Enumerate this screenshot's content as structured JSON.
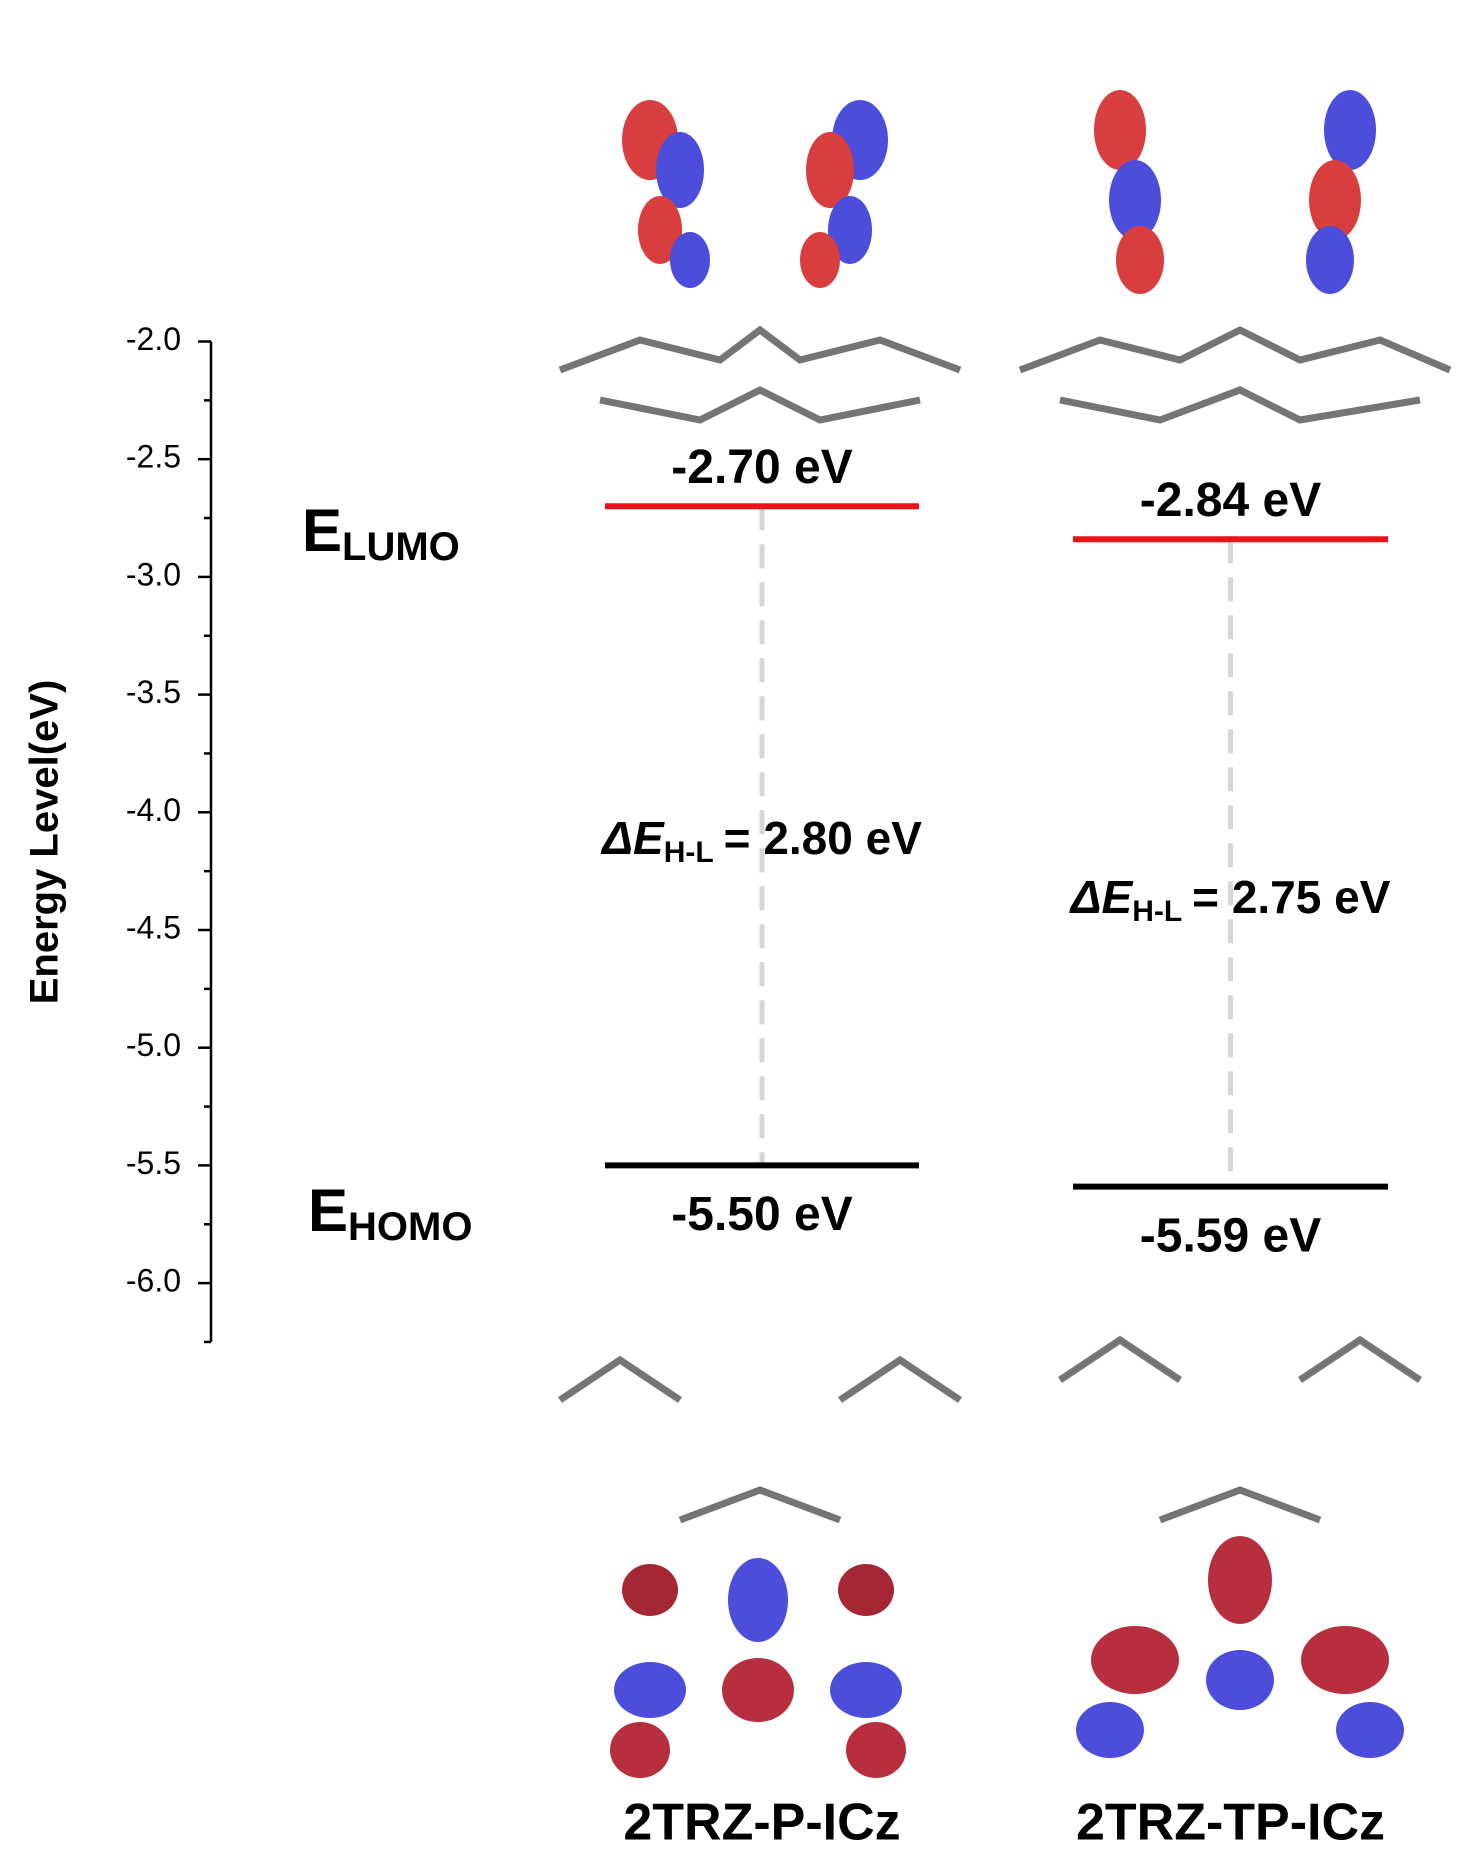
{
  "chart_data": {
    "type": "energy-level",
    "y_label": "Energy Level(eV)",
    "ylim": [
      -6.25,
      -2.0
    ],
    "yticks": [
      {
        "value": -2.0,
        "label": "-2.0"
      },
      {
        "value": -2.5,
        "label": "-2.5"
      },
      {
        "value": -3.0,
        "label": "-3.0"
      },
      {
        "value": -3.5,
        "label": "-3.5"
      },
      {
        "value": -4.0,
        "label": "-4.0"
      },
      {
        "value": -4.5,
        "label": "-4.5"
      },
      {
        "value": -5.0,
        "label": "-5.0"
      },
      {
        "value": -5.5,
        "label": "-5.5"
      },
      {
        "value": -6.0,
        "label": "-6.0"
      }
    ],
    "yminor_ticks": [
      -2.25,
      -2.75,
      -3.25,
      -3.75,
      -4.25,
      -4.75,
      -5.25,
      -5.75,
      -6.25
    ],
    "lumo_symbol": "E",
    "lumo_subscript": "LUMO",
    "homo_symbol": "E",
    "homo_subscript": "HOMO",
    "gap_symbol": "ΔE",
    "gap_subscript": "H-L",
    "lumo_color": "#e8141a",
    "homo_color": "#000000",
    "series": [
      {
        "name": "2TRZ-P-ICz",
        "lumo": -2.7,
        "homo": -5.5,
        "lumo_label": "-2.70 eV",
        "homo_label": "-5.50 eV",
        "gap": 2.8,
        "gap_label": "= 2.80 eV"
      },
      {
        "name": "2TRZ-TP-ICz",
        "lumo": -2.84,
        "homo": -5.59,
        "lumo_label": "-2.84 eV",
        "homo_label": "-5.59 eV",
        "gap": 2.75,
        "gap_label": "= 2.75 eV"
      }
    ]
  }
}
